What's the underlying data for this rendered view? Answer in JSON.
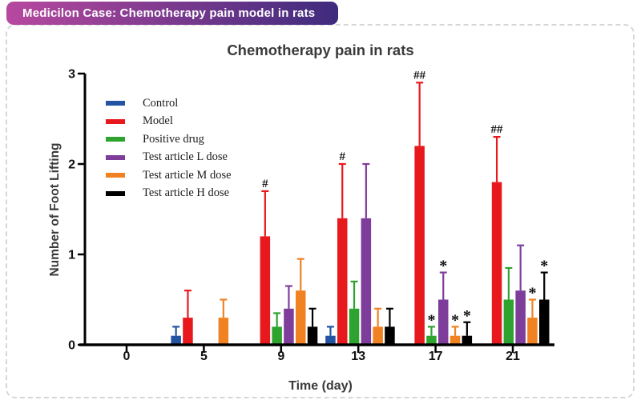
{
  "header": {
    "badge": "Medicilon Case: Chemotherapy pain model in rats",
    "badge_colors": [
      "#b7499f",
      "#3e2b7d"
    ]
  },
  "chart_data": {
    "type": "bar",
    "title": "Chemotherapy pain in rats",
    "xlabel": "Time (day)",
    "ylabel": "Number of Foot Lifting",
    "ylim": [
      0,
      3
    ],
    "yticks": [
      0,
      1,
      2,
      3
    ],
    "categories": [
      "0",
      "5",
      "9",
      "13",
      "17",
      "21"
    ],
    "grid": false,
    "legend_position": "inside top-left",
    "error_bars": "upper SD whiskers colored per series",
    "series": [
      {
        "name": "Control",
        "color": "#2353a3",
        "values": [
          0,
          0.1,
          0,
          0.1,
          0,
          0
        ],
        "sd_upper": [
          0,
          0.1,
          0,
          0.1,
          0,
          0
        ],
        "significance": [
          "",
          "",
          "",
          "",
          "",
          ""
        ]
      },
      {
        "name": "Model",
        "color": "#e8191d",
        "values": [
          0,
          0.3,
          1.2,
          1.4,
          2.2,
          1.8
        ],
        "sd_upper": [
          0,
          0.3,
          0.5,
          0.6,
          0.7,
          0.5
        ],
        "significance": [
          "",
          "",
          "#",
          "#",
          "##",
          "##"
        ]
      },
      {
        "name": "Positive drug",
        "color": "#2fa330",
        "values": [
          0,
          0,
          0.2,
          0.4,
          0.1,
          0.5
        ],
        "sd_upper": [
          0,
          0,
          0.15,
          0.3,
          0.1,
          0.35
        ],
        "significance": [
          "",
          "",
          "",
          "",
          "*",
          ""
        ]
      },
      {
        "name": "Test article L dose",
        "color": "#7f3d9b",
        "values": [
          0,
          0,
          0.4,
          1.4,
          0.5,
          0.6
        ],
        "sd_upper": [
          0,
          0,
          0.25,
          0.6,
          0.3,
          0.5
        ],
        "significance": [
          "",
          "",
          "",
          "",
          "*",
          ""
        ]
      },
      {
        "name": "Test article M dose",
        "color": "#f08222",
        "values": [
          0,
          0.3,
          0.6,
          0.2,
          0.1,
          0.3
        ],
        "sd_upper": [
          0,
          0.2,
          0.35,
          0.2,
          0.1,
          0.2
        ],
        "significance": [
          "",
          "",
          "",
          "",
          "*",
          "*"
        ]
      },
      {
        "name": "Test article H dose",
        "color": "#000000",
        "values": [
          0,
          0,
          0.2,
          0.2,
          0.1,
          0.5
        ],
        "sd_upper": [
          0,
          0,
          0.2,
          0.2,
          0.15,
          0.3
        ],
        "significance": [
          "",
          "",
          "",
          "",
          "*",
          "*"
        ]
      }
    ]
  }
}
